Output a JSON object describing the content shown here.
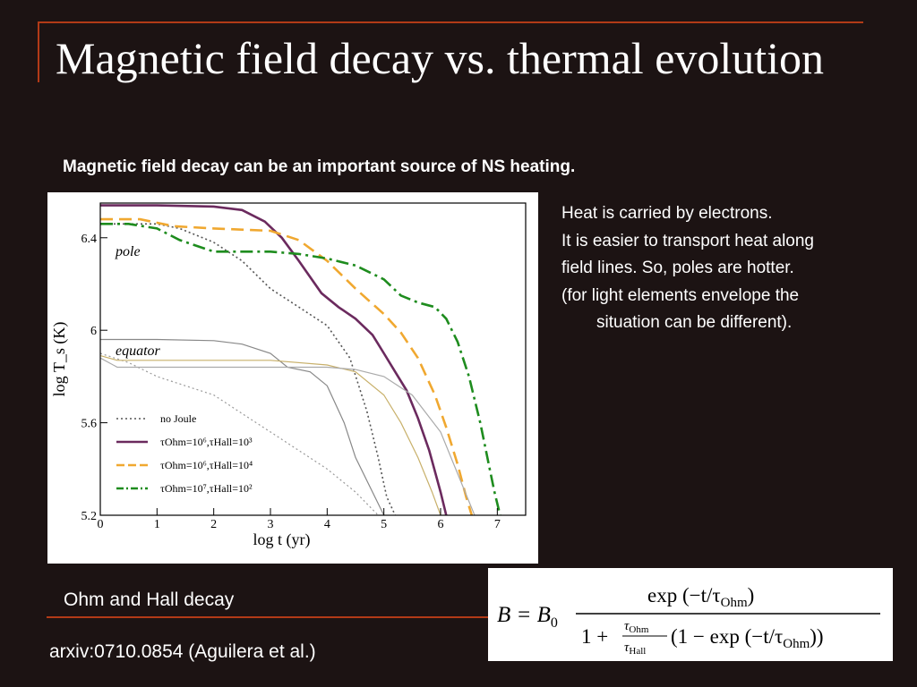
{
  "slide": {
    "title": "Magnetic field decay vs. thermal evolution",
    "subtitle": "Magnetic field decay can be an important source of NS heating.",
    "notes": [
      "Heat is carried by electrons.",
      "It is easier to transport heat along",
      "field lines. So, poles are hotter.",
      "(for light elements envelope the",
      "situation can be different)."
    ],
    "caption": "Ohm and Hall decay",
    "reference": "arxiv:0710.0854 (Aguilera et al.)",
    "accent_color": "#b23a17",
    "background_color": "#1c1313"
  },
  "formula": {
    "lhs": "B = B",
    "lhs_sub": "0",
    "numerator": "exp (−t/τ",
    "numerator_sub": "Ohm",
    "numerator_close": ")",
    "denom_one": "1 +",
    "frac_top": "τ",
    "frac_top_sub": "Ohm",
    "frac_bottom": "τ",
    "frac_bottom_sub": "Hall",
    "denom_rest": "(1 − exp (−t/τ",
    "denom_rest_sub": "Ohm",
    "denom_close": "))"
  },
  "chart_data": {
    "type": "line",
    "xlabel": "log t (yr)",
    "ylabel": "log T_s (K)",
    "xlim": [
      0,
      7.5
    ],
    "ylim": [
      5.2,
      6.55
    ],
    "xticks": [
      "0",
      "1",
      "2",
      "3",
      "4",
      "5",
      "6",
      "7"
    ],
    "yticks": [
      "5.2",
      "5.6",
      "6",
      "6.4"
    ],
    "region_labels": [
      "pole",
      "equator"
    ],
    "legend_position": "bottom-left",
    "series": [
      {
        "name": "no Joule",
        "region": "pole",
        "color": "#555555",
        "style": "dotted",
        "x": [
          0,
          1,
          1.4,
          2,
          2.5,
          3,
          3.5,
          4,
          4.4,
          4.7,
          4.9,
          5.05,
          5.2
        ],
        "y": [
          6.46,
          6.46,
          6.44,
          6.38,
          6.3,
          6.18,
          6.1,
          6.02,
          5.88,
          5.65,
          5.45,
          5.28,
          5.2
        ]
      },
      {
        "name": "τOhm=10⁶,τHall=10³",
        "region": "pole",
        "color": "#6b2a5e",
        "style": "solid",
        "x": [
          0,
          1,
          2,
          2.5,
          2.9,
          3.2,
          3.5,
          3.9,
          4.2,
          4.5,
          4.8,
          5.0,
          5.2,
          5.4,
          5.6,
          5.8,
          6.0,
          6.1
        ],
        "y": [
          6.54,
          6.54,
          6.535,
          6.52,
          6.47,
          6.4,
          6.3,
          6.16,
          6.1,
          6.05,
          5.98,
          5.9,
          5.82,
          5.74,
          5.62,
          5.48,
          5.3,
          5.2
        ]
      },
      {
        "name": "τOhm=10⁶,τHall=10⁴",
        "region": "pole",
        "color": "#f0a830",
        "style": "dashed",
        "x": [
          0,
          0.7,
          1,
          1.3,
          2,
          3,
          3.5,
          4,
          4.5,
          5,
          5.3,
          5.6,
          5.9,
          6.1,
          6.3,
          6.45,
          6.55
        ],
        "y": [
          6.48,
          6.48,
          6.465,
          6.45,
          6.44,
          6.43,
          6.39,
          6.3,
          6.18,
          6.07,
          5.99,
          5.88,
          5.72,
          5.58,
          5.42,
          5.28,
          5.2
        ]
      },
      {
        "name": "τOhm=10⁷,τHall=10²",
        "region": "pole",
        "color": "#1e8c1e",
        "style": "dashdot",
        "x": [
          0,
          0.5,
          1,
          1.4,
          2,
          3,
          3.5,
          4,
          4.5,
          5,
          5.3,
          5.6,
          5.9,
          6.1,
          6.3,
          6.5,
          6.7,
          6.85,
          6.95,
          7.05
        ],
        "y": [
          6.46,
          6.46,
          6.44,
          6.39,
          6.34,
          6.34,
          6.33,
          6.31,
          6.28,
          6.22,
          6.15,
          6.12,
          6.1,
          6.05,
          5.95,
          5.8,
          5.6,
          5.42,
          5.3,
          5.2
        ]
      },
      {
        "name": "no Joule",
        "region": "equator",
        "color": "#999999",
        "style": "dotted",
        "x": [
          0,
          0.5,
          1,
          2,
          2.5,
          3,
          3.5,
          4,
          4.5,
          4.9
        ],
        "y": [
          5.9,
          5.86,
          5.8,
          5.72,
          5.64,
          5.56,
          5.48,
          5.4,
          5.3,
          5.2
        ]
      },
      {
        "name": "τOhm=10⁶,τHall=10³",
        "region": "equator",
        "color": "#888888",
        "style": "solid",
        "x": [
          0,
          1,
          2,
          2.5,
          3,
          3.3,
          3.7,
          4,
          4.3,
          4.5,
          4.8,
          5.0
        ],
        "y": [
          5.96,
          5.96,
          5.955,
          5.94,
          5.9,
          5.84,
          5.82,
          5.76,
          5.6,
          5.45,
          5.3,
          5.2
        ]
      },
      {
        "name": "τOhm=10⁶,τHall=10⁴",
        "region": "equator",
        "color": "#c8b06a",
        "style": "solid",
        "x": [
          0,
          0.3,
          1,
          2,
          3,
          4,
          4.5,
          5,
          5.3,
          5.6,
          5.85,
          6.0
        ],
        "y": [
          5.89,
          5.87,
          5.87,
          5.87,
          5.87,
          5.85,
          5.82,
          5.72,
          5.6,
          5.45,
          5.3,
          5.2
        ]
      },
      {
        "name": "τOhm=10⁷,τHall=10²",
        "region": "equator",
        "color": "#aaaaaa",
        "style": "solid",
        "x": [
          0,
          0.3,
          1,
          2,
          3,
          4,
          4.5,
          5,
          5.5,
          6,
          6.3,
          6.6
        ],
        "y": [
          5.88,
          5.84,
          5.84,
          5.84,
          5.84,
          5.84,
          5.83,
          5.8,
          5.72,
          5.56,
          5.38,
          5.2
        ]
      }
    ]
  }
}
